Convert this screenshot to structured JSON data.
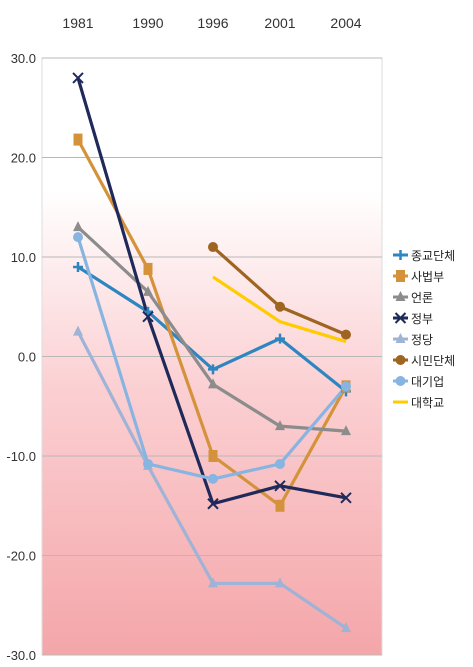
{
  "chart_data": {
    "type": "line",
    "title": "",
    "xlabel": "",
    "ylabel": "",
    "x": [
      "1981",
      "1990",
      "1996",
      "2001",
      "2004"
    ],
    "ylim": [
      -30,
      30
    ],
    "yticks": [
      30,
      20,
      10,
      0,
      -10,
      -20,
      -30
    ],
    "ytick_labels": [
      "30.0",
      "20.0",
      "10.0",
      "0.0",
      "-10.0",
      "-20.0",
      "-30.0"
    ],
    "x_axis_position": "top",
    "grid": "horizontal",
    "background": "white-to-red vertical gradient",
    "legend_position": "right",
    "series": [
      {
        "name": "종교단체",
        "values": [
          9.0,
          4.5,
          -1.3,
          1.8,
          -3.5
        ],
        "color": "#2E86C1",
        "marker": "plus"
      },
      {
        "name": "사법부",
        "values": [
          21.8,
          8.8,
          -10.0,
          -15.0,
          -3.0
        ],
        "color": "#D4923A",
        "marker": "square"
      },
      {
        "name": "언론",
        "values": [
          13.0,
          6.5,
          -2.8,
          -7.0,
          -7.5
        ],
        "color": "#8C8C8C",
        "marker": "triangle"
      },
      {
        "name": "정부",
        "values": [
          28.0,
          4.0,
          -14.8,
          -13.0,
          -14.2
        ],
        "color": "#1F2A5A",
        "marker": "x"
      },
      {
        "name": "정당",
        "values": [
          2.5,
          -11.0,
          -22.8,
          -22.8,
          -27.3
        ],
        "color": "#9EB3D6",
        "marker": "triangle"
      },
      {
        "name": "시민단체",
        "values": [
          null,
          null,
          11.0,
          5.0,
          2.2
        ],
        "color": "#9E6420",
        "marker": "circle"
      },
      {
        "name": "대기업",
        "values": [
          12.0,
          -10.8,
          -12.3,
          -10.8,
          -3.0
        ],
        "color": "#87B4E0",
        "marker": "circle"
      },
      {
        "name": "대학교",
        "values": [
          null,
          null,
          8.0,
          3.5,
          1.5
        ],
        "color": "#FFCC00",
        "marker": "none"
      }
    ]
  }
}
